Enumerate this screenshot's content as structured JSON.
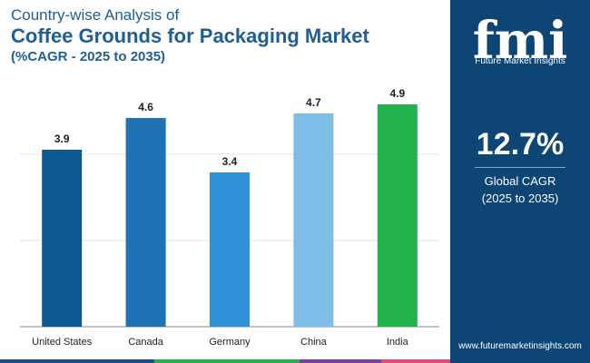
{
  "header": {
    "title_line1": "Country-wise Analysis of",
    "title_line2": "Coffee Grounds for Packaging Market",
    "subtitle": "(%CAGR - 2025 to 2035)"
  },
  "chart_data": {
    "type": "bar",
    "categories": [
      "United States",
      "Canada",
      "Germany",
      "China",
      "India"
    ],
    "values": [
      3.9,
      4.6,
      3.4,
      4.7,
      4.9
    ],
    "data_labels": [
      "3.9",
      "4.6",
      "3.4",
      "4.7",
      "4.9"
    ],
    "colors": [
      "#0d5a92",
      "#1f73b4",
      "#2f92d6",
      "#7dbde6",
      "#22b14c"
    ],
    "ylim": [
      0,
      5.0
    ],
    "grid": true,
    "title": "",
    "xlabel": "",
    "ylabel": ""
  },
  "side_panel": {
    "logo_letters": "fmi",
    "logo_text": "Future Market Insights",
    "kpi_value": "12.7%",
    "kpi_label_line1": "Global CAGR",
    "kpi_label_line2": "(2025 to 2035)",
    "website": "www.futuremarketinsights.com"
  },
  "colors": {
    "brand_blue": "#1f5f94",
    "panel_bg": "#0d4575",
    "strip": [
      "#1b4f8c",
      "#22b14c",
      "#7a3fa0",
      "#e04a7c"
    ]
  }
}
